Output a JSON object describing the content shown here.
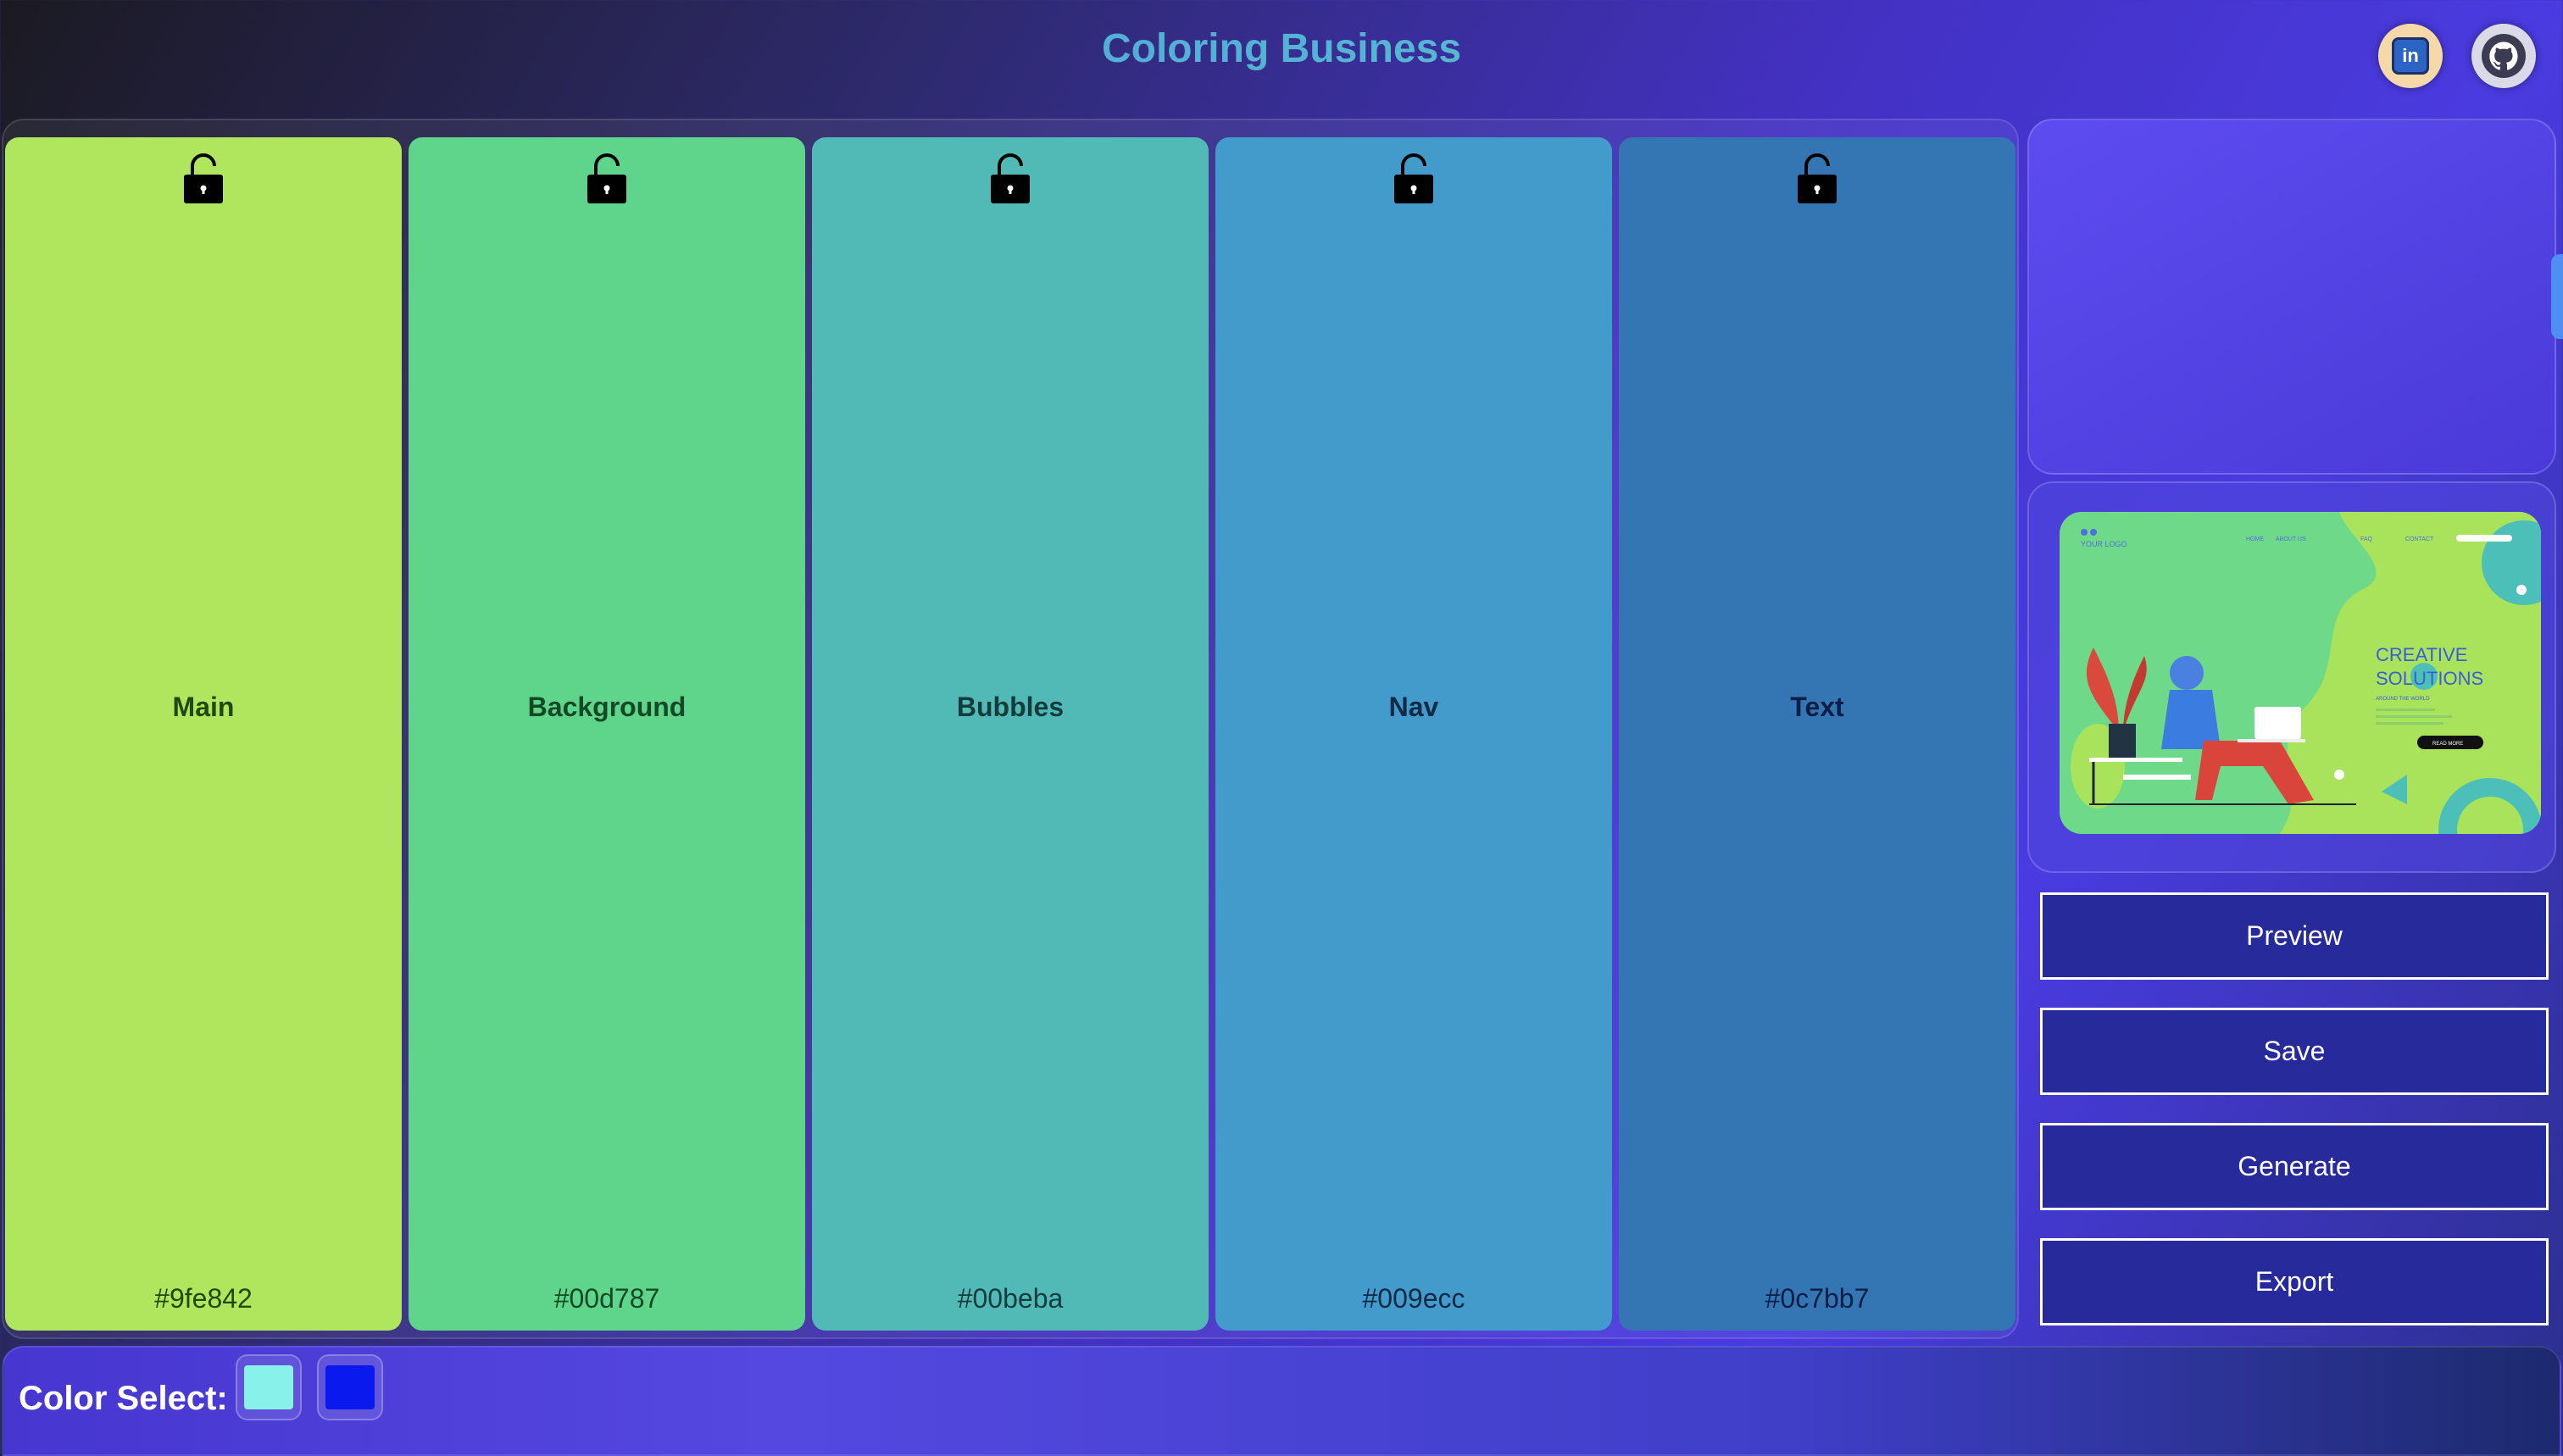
{
  "header": {
    "title": "Coloring Business",
    "linkedin_icon": "linkedin-icon",
    "github_icon": "github-icon",
    "linkedin_glyph": "in"
  },
  "palette": [
    {
      "name": "Main",
      "hex": "#9fe842",
      "display": "#b0e65e",
      "label_color": "#1f4a0f"
    },
    {
      "name": "Background",
      "hex": "#00d787",
      "display": "#5fd58c",
      "label_color": "#134a25"
    },
    {
      "name": "Bubbles",
      "hex": "#00beba",
      "display": "#52bab6",
      "label_color": "#143c3c"
    },
    {
      "name": "Nav",
      "hex": "#009ecc",
      "display": "#429bca",
      "label_color": "#0e2a45"
    },
    {
      "name": "Text",
      "hex": "#0c7bb7",
      "display": "#3476b4",
      "label_color": "#0b1f45"
    }
  ],
  "lock_icon": "unlocked-padlock-icon",
  "preview_card": {
    "logo": "YOUR LOGO",
    "nav": [
      "HOME",
      "ABOUT US",
      "FAQ",
      "CONTACT"
    ],
    "headline_1": "CREATIVE",
    "headline_2": "SOLUTIONS",
    "tagline": "AROUND THE WORLD",
    "cta": "READ MORE"
  },
  "actions": {
    "preview": "Preview",
    "save": "Save",
    "generate": "Generate",
    "export": "Export"
  },
  "footer": {
    "label": "Color Select:",
    "swatches": [
      "#88f2ea",
      "#0a1aef"
    ]
  }
}
